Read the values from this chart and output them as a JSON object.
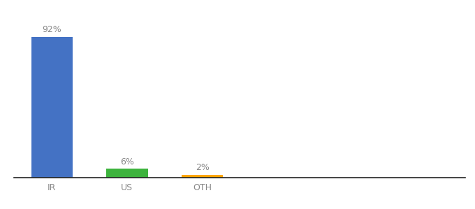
{
  "categories": [
    "IR",
    "US",
    "OTH"
  ],
  "values": [
    92,
    6,
    2
  ],
  "bar_colors": [
    "#4472C4",
    "#3DB33D",
    "#FFA500"
  ],
  "labels": [
    "92%",
    "6%",
    "2%"
  ],
  "label_fontsize": 9,
  "tick_fontsize": 9,
  "background_color": "#ffffff",
  "ylim": [
    0,
    105
  ],
  "bar_width": 0.55,
  "label_color": "#888888"
}
